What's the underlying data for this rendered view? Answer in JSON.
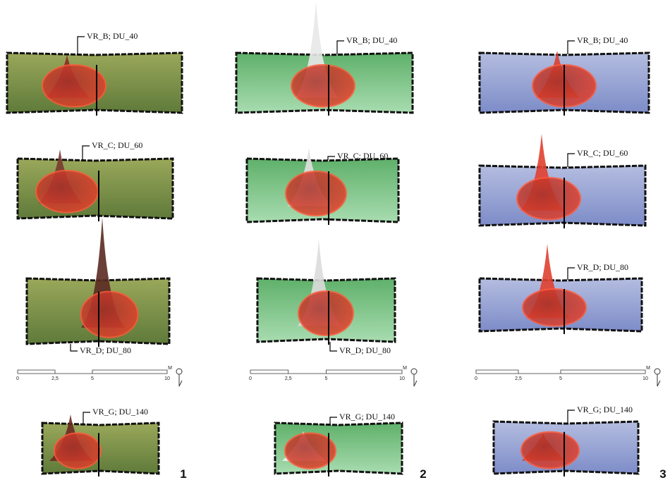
{
  "figure": {
    "columns": [
      {
        "number": "1",
        "scale": {
          "ticks": [
            "0",
            "2,5",
            "5",
            "10"
          ],
          "unit": "M"
        },
        "panels": [
          {
            "label": "VR_B; DU_40"
          },
          {
            "label": "VR_C; DU_60"
          },
          {
            "label": "VR_D; DU_80"
          },
          {
            "label": "VR_G; DU_140"
          }
        ]
      },
      {
        "number": "2",
        "scale": {
          "ticks": [
            "0",
            "2,5",
            "5",
            "10"
          ],
          "unit": "M"
        },
        "panels": [
          {
            "label": "VR_B; DU_40"
          },
          {
            "label": "VR_C; DU_60"
          },
          {
            "label": "VR_D; DU_80"
          },
          {
            "label": "VR_G; DU_140"
          }
        ]
      },
      {
        "number": "3",
        "scale": {
          "ticks": [
            "0",
            "2,5",
            "5",
            "10"
          ],
          "unit": "M"
        },
        "panels": [
          {
            "label": "VR_B; DU_40"
          },
          {
            "label": "VR_C; DU_60"
          },
          {
            "label": "VR_D; DU_80"
          },
          {
            "label": "VR_G; DU_140"
          }
        ]
      }
    ]
  }
}
